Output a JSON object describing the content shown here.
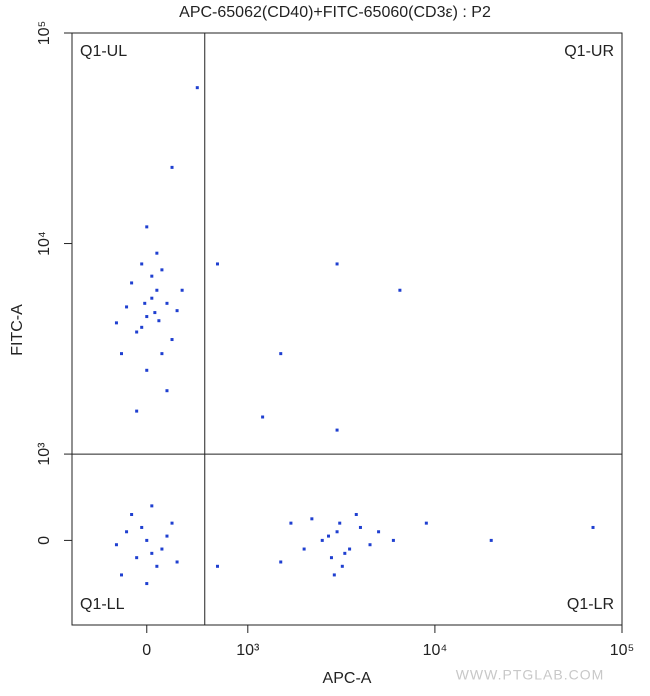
{
  "chart_data": {
    "type": "scatter",
    "title": "APC-65062(CD40)+FITC-65060(CD3ε) : P2",
    "x_label": "APC-A",
    "y_label": "FITC-A",
    "watermark": "WWW.PTGLAB.COM",
    "xlim": [
      -740,
      100000
    ],
    "ylim": [
      -980,
      100000
    ],
    "xticks": [
      0,
      {
        "value": 1000,
        "label": "10³"
      },
      {
        "value": 10000,
        "label": "10⁴"
      },
      {
        "value": 100000,
        "label": "10⁵"
      }
    ],
    "yticks": [
      0,
      {
        "value": 1000,
        "label": "10³"
      },
      {
        "value": 10000,
        "label": "10⁴"
      },
      {
        "value": 100000,
        "label": "10⁵"
      }
    ],
    "gates": {
      "x": 574,
      "y": 1000
    },
    "quadrants": [
      "Q1-UL",
      "Q1-UR",
      "Q1-LL",
      "Q1-LR"
    ],
    "color": "#1f3fd0",
    "x": [
      -200,
      0,
      100,
      -100,
      200,
      50,
      -300,
      150,
      -50,
      300,
      0,
      -150,
      250,
      100,
      -250,
      50,
      -50,
      200,
      0,
      150,
      -100,
      350,
      80,
      -20,
      120,
      -200,
      0,
      150,
      -100,
      250,
      50,
      -300,
      100,
      -50,
      300,
      0,
      -150,
      200,
      50,
      -250,
      2500,
      3000,
      3500,
      2800,
      4000,
      2200,
      3200,
      4500,
      2000,
      3800,
      2700,
      3300,
      5000,
      1700,
      2900,
      3100,
      6000,
      1500,
      700,
      1500,
      6500,
      3000,
      700,
      20000,
      70000,
      500,
      250,
      1200,
      3000,
      9000
    ],
    "y": [
      5000,
      4500,
      6000,
      3800,
      5200,
      7000,
      4200,
      3000,
      8000,
      4800,
      2500,
      6500,
      3500,
      9000,
      3000,
      5500,
      4000,
      2000,
      12000,
      7500,
      1600,
      6000,
      4700,
      5200,
      4300,
      100,
      0,
      -100,
      -200,
      200,
      400,
      -50,
      -300,
      150,
      -250,
      -500,
      300,
      50,
      -150,
      -400,
      0,
      100,
      -100,
      -200,
      150,
      250,
      -300,
      -50,
      -100,
      300,
      50,
      -150,
      100,
      200,
      -400,
      200,
      0,
      -250,
      8000,
      3000,
      6000,
      8000,
      -300,
      0,
      150,
      55000,
      23000,
      1500,
      1300,
      200
    ]
  }
}
